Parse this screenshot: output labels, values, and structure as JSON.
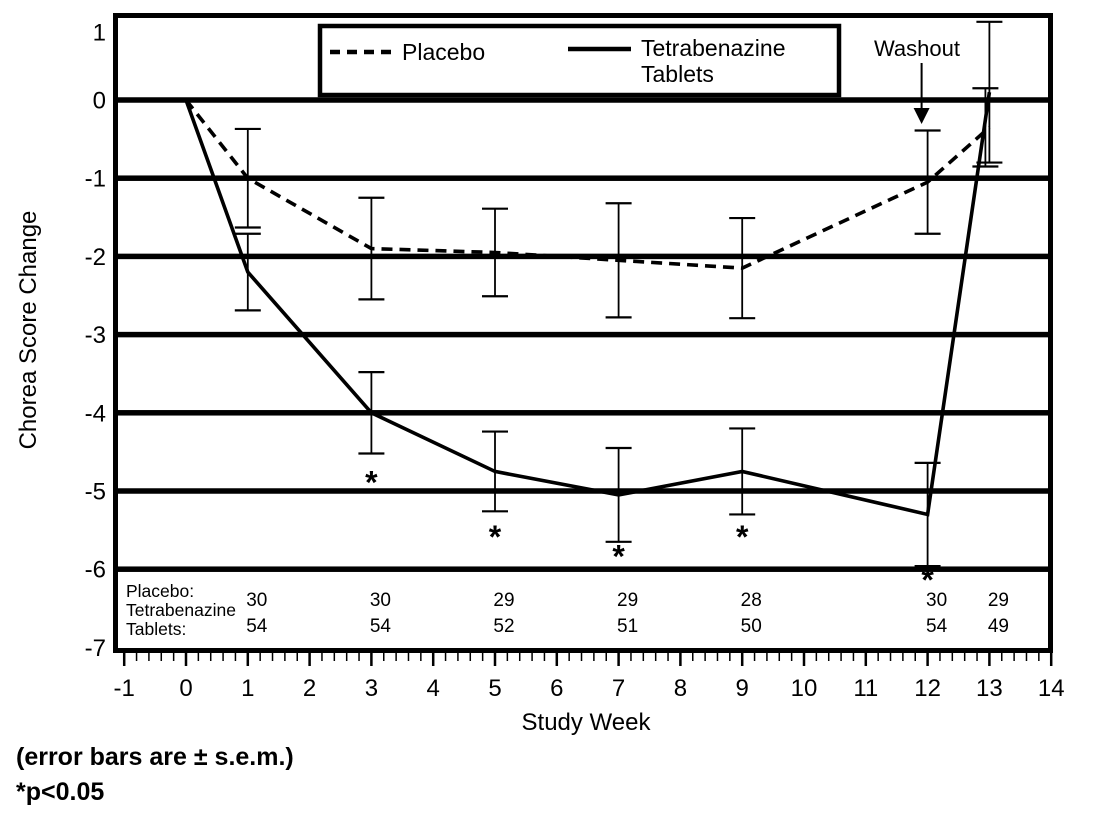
{
  "figure": {
    "y_axis": {
      "title": "Chorea Score Change",
      "tick_labels": [
        "1",
        "0",
        "-1",
        "-2",
        "-3",
        "-4",
        "-5",
        "-6",
        "-7"
      ],
      "tick_values": [
        1,
        0,
        -1,
        -2,
        -3,
        -4,
        -5,
        -6,
        -7
      ],
      "gridline_values": [
        0,
        -1,
        -2,
        -3,
        -4,
        -5,
        -6
      ]
    },
    "x_axis": {
      "title": "Study Week",
      "tick_values": [
        -1,
        0,
        1,
        2,
        3,
        4,
        5,
        6,
        7,
        8,
        9,
        10,
        11,
        12,
        13,
        14
      ],
      "minor_tick_step": 0.2
    },
    "legend": {
      "items": [
        {
          "label": "Placebo",
          "line_style": "dashed",
          "label_lines": [
            "Placebo"
          ]
        },
        {
          "label": "Tetrabenazine Tablets",
          "line_style": "solid",
          "label_lines": [
            "Tetrabenazine",
            "Tablets"
          ]
        }
      ]
    },
    "washout": {
      "label": "Washout",
      "arrow_week": 12
    },
    "sample_table": {
      "row_label_lines": [
        "Placebo:",
        "Tetrabenazine",
        "Tablets:"
      ]
    },
    "footnotes": [
      "(error bars are ± s.e.m.)",
      "*p<0.05"
    ],
    "colors": {
      "ink": "#000000",
      "background": "#ffffff"
    }
  },
  "chart_data": {
    "type": "line",
    "title": "",
    "xlabel": "Study Week",
    "ylabel": "Chorea Score Change",
    "xlim": [
      -1,
      14
    ],
    "ylim": [
      -7,
      1
    ],
    "gridlines": "horizontal-major",
    "legend_position": "top-inside",
    "x": [
      0,
      1,
      3,
      5,
      7,
      9,
      12,
      13
    ],
    "series": [
      {
        "name": "Placebo",
        "style": "dashed",
        "values": [
          0,
          -1.0,
          -1.9,
          -1.95,
          -2.05,
          -2.15,
          -1.05,
          -0.35
        ],
        "sem": [
          0,
          0.63,
          0.65,
          0.56,
          0.73,
          0.64,
          0.66,
          0.5
        ],
        "n": [
          30,
          30,
          29,
          29,
          28,
          30,
          29
        ]
      },
      {
        "name": "Tetrabenazine Tablets",
        "style": "solid",
        "values": [
          0,
          -2.2,
          -4.0,
          -4.75,
          -5.05,
          -4.75,
          -5.3,
          0.1
        ],
        "sem": [
          0,
          0.49,
          0.52,
          0.51,
          0.6,
          0.55,
          0.66,
          0.9
        ],
        "n": [
          54,
          54,
          52,
          51,
          50,
          54,
          49
        ]
      }
    ],
    "n_weeks": [
      1,
      3,
      5,
      7,
      9,
      12,
      13
    ],
    "significance_marks": [
      {
        "week": 3,
        "y": -4.85
      },
      {
        "week": 5,
        "y": -5.55
      },
      {
        "week": 7,
        "y": -5.8
      },
      {
        "week": 9,
        "y": -5.55
      },
      {
        "week": 12,
        "y": -6.1
      }
    ]
  }
}
